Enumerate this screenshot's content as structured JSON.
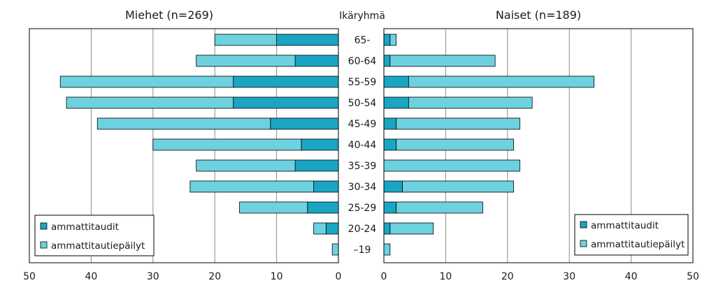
{
  "chart_data": {
    "type": "bar",
    "orientation": "horizontal",
    "layout": "population-pyramid",
    "category_header": "Ikäryhmä",
    "categories": [
      "65-",
      "60-64",
      "55-59",
      "50-54",
      "45-49",
      "40-44",
      "35-39",
      "30-34",
      "25-29",
      "20-24",
      "–19"
    ],
    "xticks": [
      50,
      40,
      30,
      20,
      10,
      0
    ],
    "grid": true,
    "colors": {
      "dark": "#1aa5c3",
      "light": "#6dd1df"
    },
    "panels": [
      {
        "title": "Miehet (n=269)",
        "direction": "left",
        "xlim": [
          0,
          50
        ],
        "series": [
          {
            "name": "ammattitaudit",
            "values": [
              10,
              7,
              17,
              17,
              11,
              6,
              7,
              4,
              5,
              2,
              0
            ]
          },
          {
            "name": "ammattitautiepäilyt",
            "values": [
              10,
              16,
              28,
              27,
              28,
              24,
              16,
              20,
              11,
              2,
              1
            ]
          }
        ],
        "legend_position": "bottom-left"
      },
      {
        "title": "Naiset (n=189)",
        "direction": "right",
        "xlim": [
          0,
          50
        ],
        "series": [
          {
            "name": "ammattitaudit",
            "values": [
              1,
              1,
              4,
              4,
              2,
              2,
              0,
              3,
              2,
              1,
              0
            ]
          },
          {
            "name": "ammattitautiepäilyt",
            "values": [
              1,
              17,
              30,
              20,
              20,
              19,
              22,
              18,
              14,
              7,
              1
            ]
          }
        ],
        "legend_position": "bottom-right"
      }
    ]
  }
}
